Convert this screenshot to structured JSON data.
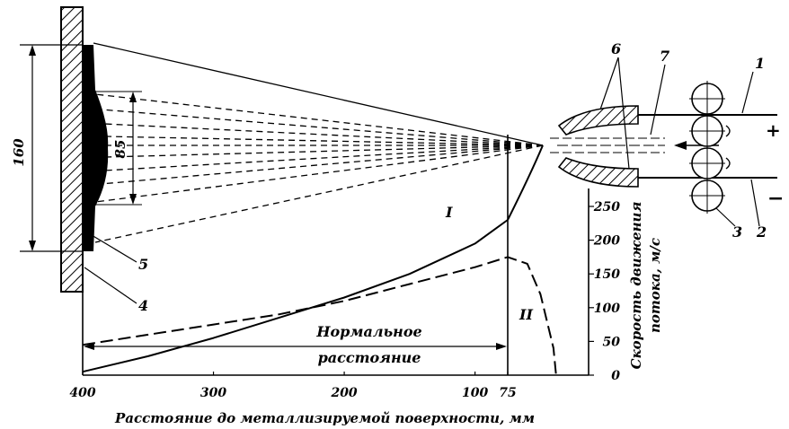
{
  "dimensions": {
    "overall": "160",
    "coating": "85"
  },
  "callouts": {
    "c1": "1",
    "c2": "2",
    "c3": "3",
    "c4": "4",
    "c5": "5",
    "c6": "6",
    "c7": "7"
  },
  "polarity": {
    "plus": "+",
    "minus": "−"
  },
  "curve_labels": {
    "I": "I",
    "II": "II"
  },
  "normal_distance": {
    "line1": "Нормальное",
    "line2": "расстояние"
  },
  "x_axis": {
    "label": "Расстояние до металлизируемой поверхности, мм",
    "ticks": [
      "400",
      "300",
      "200",
      "100",
      "75"
    ]
  },
  "y_axis": {
    "label_line1": "Скорость движения",
    "label_line2": "потока, м/с",
    "ticks": [
      "0",
      "50",
      "100",
      "150",
      "200",
      "250"
    ]
  },
  "chart_data": {
    "type": "line",
    "xlabel": "Расстояние до металлизируемой поверхности, мм",
    "ylabel": "Скорость движения потока, м/с",
    "xlim": [
      400,
      0
    ],
    "ylim": [
      0,
      250
    ],
    "series": [
      {
        "name": "I",
        "x": [
          400,
          350,
          300,
          250,
          200,
          150,
          100,
          75
        ],
        "y": [
          5,
          28,
          55,
          85,
          115,
          150,
          195,
          230
        ]
      },
      {
        "name": "II",
        "x": [
          400,
          350,
          300,
          250,
          200,
          150,
          100,
          75,
          60,
          50,
          40,
          38
        ],
        "y": [
          45,
          60,
          75,
          90,
          110,
          135,
          160,
          175,
          165,
          120,
          40,
          0
        ]
      }
    ]
  }
}
